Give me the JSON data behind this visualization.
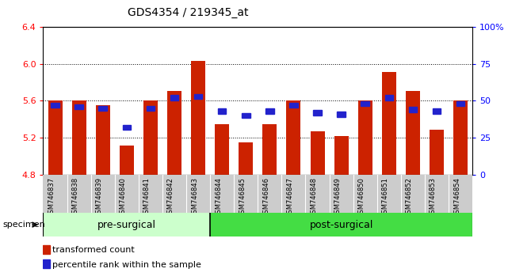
{
  "title": "GDS4354 / 219345_at",
  "specimens": [
    "GSM746837",
    "GSM746838",
    "GSM746839",
    "GSM746840",
    "GSM746841",
    "GSM746842",
    "GSM746843",
    "GSM746844",
    "GSM746845",
    "GSM746846",
    "GSM746847",
    "GSM746848",
    "GSM746849",
    "GSM746850",
    "GSM746851",
    "GSM746852",
    "GSM746853",
    "GSM746854"
  ],
  "bar_values": [
    5.6,
    5.6,
    5.55,
    5.12,
    5.6,
    5.71,
    6.03,
    5.35,
    5.15,
    5.35,
    5.6,
    5.27,
    5.22,
    5.6,
    5.91,
    5.71,
    5.29,
    5.6
  ],
  "percentile_values": [
    47,
    46,
    45,
    32,
    45,
    52,
    53,
    43,
    40,
    43,
    47,
    42,
    41,
    48,
    52,
    44,
    43,
    48
  ],
  "bar_bottom": 4.8,
  "ylim_left": [
    4.8,
    6.4
  ],
  "ylim_right": [
    0,
    100
  ],
  "yticks_left": [
    4.8,
    5.2,
    5.6,
    6.0,
    6.4
  ],
  "yticks_right": [
    0,
    25,
    50,
    75,
    100
  ],
  "ytick_labels_right": [
    "0",
    "25",
    "50",
    "75",
    "100%"
  ],
  "bar_color": "#cc2200",
  "square_color": "#2222cc",
  "pre_surgical_count": 7,
  "pre_surgical_label": "pre-surgical",
  "post_surgical_label": "post-surgical",
  "specimen_label": "specimen",
  "legend_bar_label": "transformed count",
  "legend_square_label": "percentile rank within the sample",
  "background_groups_pre": "#ccffcc",
  "background_groups_post": "#44dd44",
  "xticklabel_bg": "#cccccc"
}
